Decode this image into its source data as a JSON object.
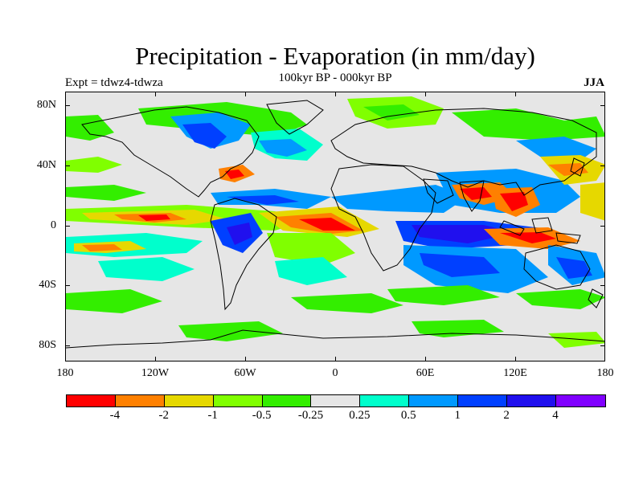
{
  "title": "Precipitation - Evaporation (in mm/day)",
  "subtitle": "100kyr BP - 000kyr BP",
  "left_label": "Expt = tdwz4-tdwza",
  "right_label": "JJA",
  "lat_labels": [
    "80N",
    "40N",
    "0",
    "40S",
    "80S"
  ],
  "lon_labels": [
    "180",
    "120W",
    "60W",
    "0",
    "60E",
    "120E",
    "180"
  ],
  "colorbar": {
    "colors": [
      "#ff0000",
      "#ff8000",
      "#e6d800",
      "#80ff00",
      "#33ee00",
      "#e6e6e6",
      "#00ffcc",
      "#0099ff",
      "#0040ff",
      "#2010ee",
      "#8000ff"
    ],
    "labels": [
      "-4",
      "-2",
      "-1",
      "-0.5",
      "-0.25",
      "0.25",
      "0.5",
      "1",
      "2",
      "4"
    ]
  },
  "land_outline_color": "#000000",
  "chart_data": {
    "type": "heatmap",
    "title": "Precipitation - Evaporation (in mm/day)",
    "subtitle": "100kyr BP - 000kyr BP",
    "xlim": [
      -180,
      180
    ],
    "ylim": [
      -90,
      90
    ],
    "x_ticks": [
      "180",
      "120W",
      "60W",
      "0",
      "60E",
      "120E",
      "180"
    ],
    "y_ticks": [
      "80N",
      "40N",
      "0",
      "40S",
      "80S"
    ],
    "levels": [
      -4,
      -2,
      -1,
      -0.5,
      -0.25,
      0.25,
      0.5,
      1,
      2,
      4
    ],
    "background_value_range": [
      -0.25,
      0.25
    ]
  }
}
